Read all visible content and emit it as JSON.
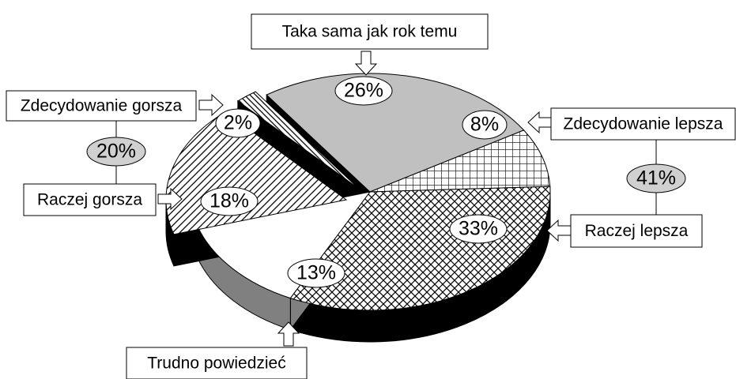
{
  "chart_data": {
    "type": "pie3d",
    "categories": [
      "Taka sama jak rok temu",
      "Zdecydowanie lepsza",
      "Raczej lepsza",
      "Trudno powiedzieć",
      "Raczej gorsza",
      "Zdecydowanie gorsza"
    ],
    "values": [
      26,
      8,
      33,
      13,
      18,
      2
    ],
    "value_labels": [
      "26%",
      "8%",
      "33%",
      "13%",
      "18%",
      "2%"
    ],
    "colors": [
      "#c0c0c0",
      "#ffffff",
      "#ffffff",
      "#ffffff",
      "#ffffff",
      "#ffffff"
    ],
    "patterns": [
      "solid",
      "grid",
      "crosshatch",
      "solid",
      "hatch",
      "backhatch"
    ],
    "side_colors": [
      "#000000",
      "#000000",
      "#000000",
      "#808080",
      "#000000",
      "#000000"
    ],
    "groups": {
      "values": [
        20,
        41
      ],
      "value_labels": [
        "20%",
        "41%"
      ]
    }
  }
}
